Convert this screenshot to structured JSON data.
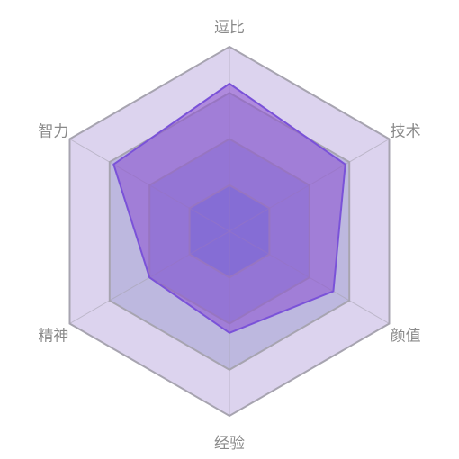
{
  "colors": {
    "ring_fill_outer_to_inner": [
      "#dcd3ee",
      "#bdb8df",
      "#9fa4dc",
      "#7f93dc"
    ],
    "ring_stroke": "#a7a4b0",
    "data_fill": "#8a4fd0",
    "data_stroke": "#7a52d8"
  },
  "chart_data": {
    "type": "radar",
    "levels": 4,
    "max": 4,
    "axes": [
      "逗比",
      "技术",
      "颜值",
      "经验",
      "精神",
      "智力"
    ],
    "series": [
      {
        "values": [
          3.2,
          2.9,
          2.6,
          2.2,
          2.0,
          2.9
        ]
      }
    ]
  }
}
